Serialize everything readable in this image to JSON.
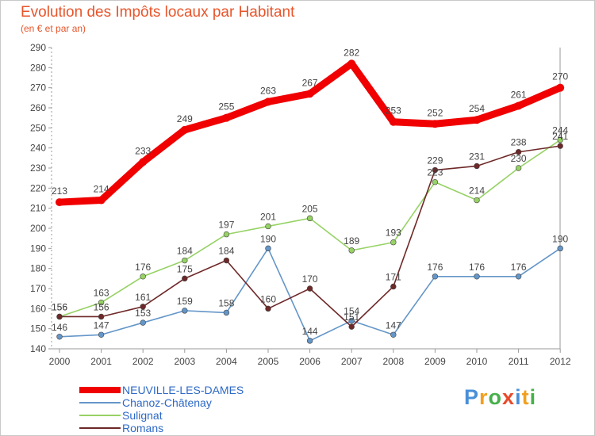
{
  "header": {
    "title": "Evolution des Impôts locaux par Habitant",
    "subtitle": "(en € et par an)"
  },
  "logo": {
    "text": "Proxiti"
  },
  "colors": {
    "accent": "#e8552b",
    "legend_text": "#2d69c6",
    "axis": "#9a9a9a"
  },
  "chart_data": {
    "type": "line",
    "title": "Evolution des Impôts locaux par Habitant",
    "subtitle": "(en € et par an)",
    "x": [
      "2000",
      "2001",
      "2002",
      "2003",
      "2004",
      "2005",
      "2006",
      "2007",
      "2008",
      "2009",
      "2010",
      "2011",
      "2012"
    ],
    "ylim": [
      140,
      290
    ],
    "yticks": [
      140,
      150,
      160,
      170,
      180,
      190,
      200,
      210,
      220,
      230,
      240,
      250,
      260,
      270,
      280,
      290
    ],
    "legend_position": "bottom-left",
    "grid": false,
    "series": [
      {
        "name": "NEUVILLE-LES-DAMES",
        "color": "#f00000",
        "values": [
          213,
          214,
          233,
          249,
          255,
          263,
          267,
          282,
          253,
          252,
          254,
          261,
          270
        ]
      },
      {
        "name": "Chanoz-Châtenay",
        "color": "#6496c8",
        "values": [
          146,
          147,
          153,
          159,
          158,
          190,
          144,
          154,
          147,
          176,
          176,
          176,
          190
        ]
      },
      {
        "name": "Sulignat",
        "color": "#96d264",
        "values": [
          156,
          163,
          176,
          184,
          197,
          201,
          205,
          189,
          193,
          223,
          214,
          230,
          244
        ]
      },
      {
        "name": "Romans",
        "color": "#6e2828",
        "values": [
          156,
          156,
          161,
          175,
          184,
          160,
          170,
          151,
          171,
          229,
          231,
          238,
          241
        ]
      }
    ]
  }
}
